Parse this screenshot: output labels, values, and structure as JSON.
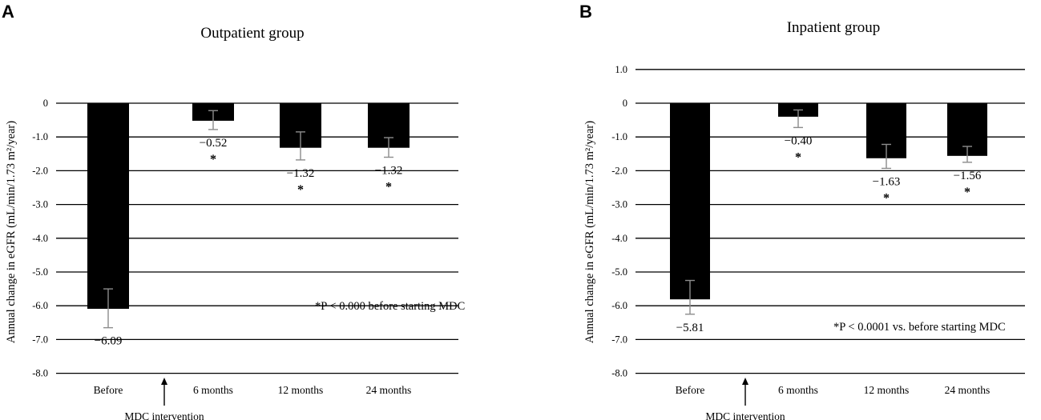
{
  "chart_data": [
    {
      "panel_label": "A",
      "type": "bar",
      "title": "Outpatient group",
      "ylabel": "Annual change in eGFR (mL/min/1.73 m²/year)",
      "ylim": [
        -8.0,
        0
      ],
      "yticks": [
        0,
        -1.0,
        -2.0,
        -3.0,
        -4.0,
        -5.0,
        -6.0,
        -7.0,
        -8.0
      ],
      "ytick_labels": [
        "0",
        "-1.0",
        "-2.0",
        "-3.0",
        "-4.0",
        "-5.0",
        "-6.0",
        "-7.0",
        "-8.0"
      ],
      "grid": true,
      "categories": [
        "Before",
        "6 months",
        "12 months",
        "24 months"
      ],
      "values": [
        -6.09,
        -0.52,
        -1.32,
        -1.32
      ],
      "value_labels": [
        "−6.09",
        "−0.52",
        "−1.32",
        "−1.32"
      ],
      "error_low": [
        -6.65,
        -0.78,
        -1.68,
        -1.6
      ],
      "error_high": [
        -5.5,
        -0.22,
        -0.85,
        -1.02
      ],
      "significant": [
        false,
        true,
        true,
        true
      ],
      "significance_marker": "*",
      "annotation": "*P < 0.000 before starting MDC",
      "intervention_label": "MDC intervention"
    },
    {
      "panel_label": "B",
      "type": "bar",
      "title": "Inpatient group",
      "ylabel": "Annual change in eGFR (mL/min/1.73 m²/year)",
      "ylim": [
        -8.0,
        1.0
      ],
      "yticks": [
        1.0,
        0,
        -1.0,
        -2.0,
        -3.0,
        -4.0,
        -5.0,
        -6.0,
        -7.0,
        -8.0
      ],
      "ytick_labels": [
        "1.0",
        "0",
        "-1.0",
        "-2.0",
        "-3.0",
        "-4.0",
        "-5.0",
        "-6.0",
        "-7.0",
        "-8.0"
      ],
      "grid": true,
      "categories": [
        "Before",
        "6 months",
        "12 months",
        "24 months"
      ],
      "values": [
        -5.81,
        -0.4,
        -1.63,
        -1.56
      ],
      "value_labels": [
        "−5.81",
        "−0.40",
        "−1.63",
        "−1.56"
      ],
      "error_low": [
        -6.25,
        -0.72,
        -1.93,
        -1.75
      ],
      "error_high": [
        -5.25,
        -0.2,
        -1.22,
        -1.28
      ],
      "significant": [
        false,
        true,
        true,
        true
      ],
      "significance_marker": "*",
      "annotation": "*P < 0.0001 vs. before starting MDC",
      "intervention_label": "MDC intervention"
    }
  ]
}
